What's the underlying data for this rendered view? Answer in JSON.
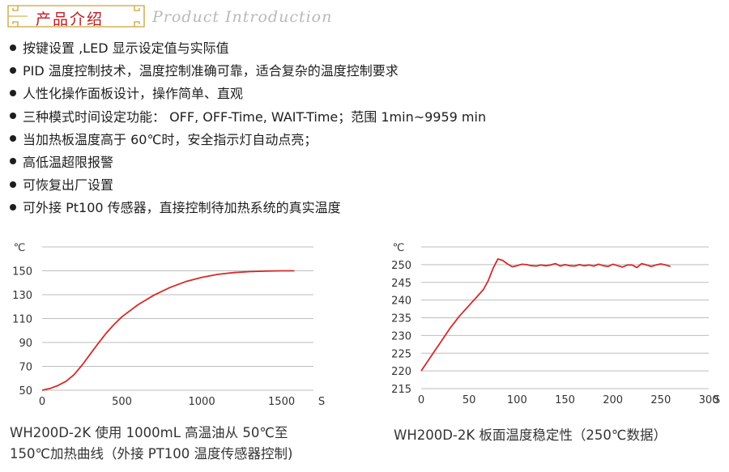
{
  "header": {
    "title_cn": "产品介绍",
    "title_en": "Product  Introduction",
    "accent_color": "#c0191e",
    "frame_color": "#d6b25a"
  },
  "features": [
    "按键设置 ,LED 显示设定值与实际值",
    "PID 温度控制技术，温度控制准确可靠，适合复杂的温度控制要求",
    "人性化操作面板设计，操作简单、直观",
    "三种模式时间设定功能：  OFF, OFF-Time, WAIT-Time；范围 1min~9959 min",
    "当加热板温度高于 60℃时，安全指示灯自动点亮；",
    "高低温超限报警",
    "可恢复出厂设置",
    "可外接 Pt100 传感器，直接控制待加热系统的真实温度"
  ],
  "chart_data": [
    {
      "type": "line",
      "y_unit_label": "℃",
      "x_unit_label": "S",
      "xlim": [
        0,
        1700
      ],
      "ylim": [
        50,
        170
      ],
      "x_ticks": [
        0,
        500,
        1000,
        1500
      ],
      "y_ticks": [
        50,
        70,
        90,
        110,
        130,
        150
      ],
      "grid": true,
      "line_color": "#d42a2a",
      "series": [
        {
          "x": [
            0,
            50,
            100,
            150,
            200,
            250,
            300,
            350,
            400,
            450,
            500,
            600,
            700,
            800,
            900,
            1000,
            1100,
            1200,
            1300,
            1400,
            1500,
            1580
          ],
          "y": [
            50,
            51.5,
            54,
            57.5,
            63,
            71,
            80,
            89,
            97.5,
            105,
            111.5,
            121.5,
            129.5,
            136,
            141,
            144.5,
            147,
            148.5,
            149.3,
            149.8,
            150,
            150
          ]
        }
      ],
      "caption": [
        "WH200D-2K 使用 1000mL 高温油从 50℃至",
        "150℃加热曲线（外接 PT100 温度传感器控制)"
      ]
    },
    {
      "type": "line",
      "y_unit_label": "℃",
      "x_unit_label": "S",
      "xlim": [
        0,
        300
      ],
      "ylim": [
        215,
        255
      ],
      "x_ticks": [
        0,
        50,
        100,
        150,
        200,
        250,
        300
      ],
      "y_ticks": [
        215,
        220,
        225,
        230,
        235,
        240,
        245,
        250
      ],
      "grid": true,
      "line_color": "#d42a2a",
      "series": [
        {
          "x": [
            0,
            10,
            20,
            30,
            40,
            50,
            60,
            65,
            70,
            75,
            80,
            85,
            90,
            95,
            100,
            105,
            110,
            115,
            120,
            125,
            130,
            135,
            140,
            145,
            150,
            155,
            160,
            165,
            170,
            175,
            180,
            185,
            190,
            195,
            200,
            205,
            210,
            215,
            220,
            225,
            230,
            235,
            240,
            245,
            250,
            255,
            260
          ],
          "y": [
            220,
            224,
            228,
            232,
            235.5,
            238.5,
            241.5,
            243,
            245.5,
            249,
            251.6,
            251.2,
            250.2,
            249.4,
            249.7,
            250.1,
            250.0,
            249.7,
            249.6,
            249.9,
            249.7,
            249.9,
            250.3,
            249.6,
            250.0,
            249.7,
            249.6,
            250.0,
            249.7,
            249.9,
            249.6,
            250.1,
            249.7,
            249.5,
            250.1,
            249.7,
            249.3,
            249.9,
            249.9,
            249.2,
            250.3,
            249.9,
            249.5,
            249.9,
            250.2,
            249.9,
            249.5
          ]
        }
      ],
      "caption": [
        "WH200D-2K 板面温度稳定性（250℃数据）"
      ]
    }
  ]
}
